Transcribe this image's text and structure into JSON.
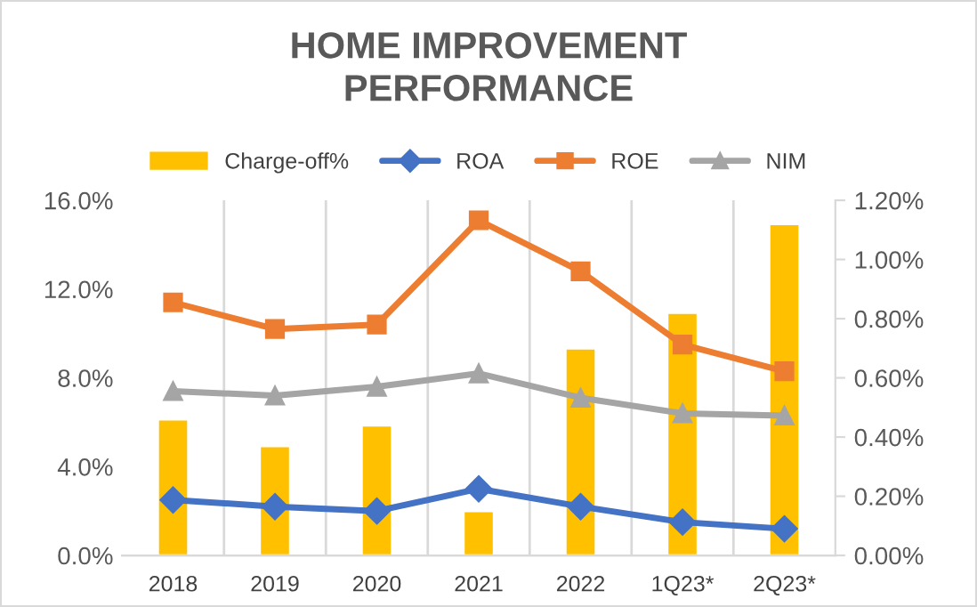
{
  "chart_data": {
    "type": "line",
    "title": "HOME IMPROVEMENT\nPERFORMANCE",
    "categories": [
      "2018",
      "2019",
      "2020",
      "2021",
      "2022",
      "1Q23*",
      "2Q23*"
    ],
    "series": [
      {
        "name": "Charge-off%",
        "type": "bar",
        "axis": "y2",
        "color": "#ffc000",
        "values": [
          0.46,
          0.37,
          0.44,
          0.15,
          0.7,
          0.82,
          1.12
        ]
      },
      {
        "name": "ROA",
        "marker": "diamond",
        "color": "#4472c4",
        "values": [
          2.5,
          2.2,
          2.0,
          3.0,
          2.2,
          1.5,
          1.2
        ]
      },
      {
        "name": "ROE",
        "marker": "square",
        "color": "#ed7d31",
        "values": [
          11.4,
          10.2,
          10.4,
          15.1,
          12.8,
          9.5,
          8.3
        ]
      },
      {
        "name": "NIM",
        "marker": "triangle",
        "color": "#a5a5a5",
        "values": [
          7.4,
          7.2,
          7.6,
          8.2,
          7.1,
          6.4,
          6.3
        ]
      }
    ],
    "ylim": [
      0,
      16
    ],
    "yticks": [
      {
        "value": 0,
        "label": "0.0%"
      },
      {
        "value": 4,
        "label": "4.0%"
      },
      {
        "value": 8,
        "label": "8.0%"
      },
      {
        "value": 12,
        "label": "12.0%"
      },
      {
        "value": 16,
        "label": "16.0%"
      }
    ],
    "y2lim": [
      0,
      1.2
    ],
    "y2ticks": [
      {
        "value": 0,
        "label": "0.00%"
      },
      {
        "value": 0.2,
        "label": "0.20%"
      },
      {
        "value": 0.4,
        "label": "0.40%"
      },
      {
        "value": 0.6,
        "label": "0.60%"
      },
      {
        "value": 0.8,
        "label": "0.80%"
      },
      {
        "value": 1.0,
        "label": "1.00%"
      },
      {
        "value": 1.2,
        "label": "1.20%"
      }
    ],
    "grid": "x",
    "legend": "top",
    "line_style": "solid"
  }
}
